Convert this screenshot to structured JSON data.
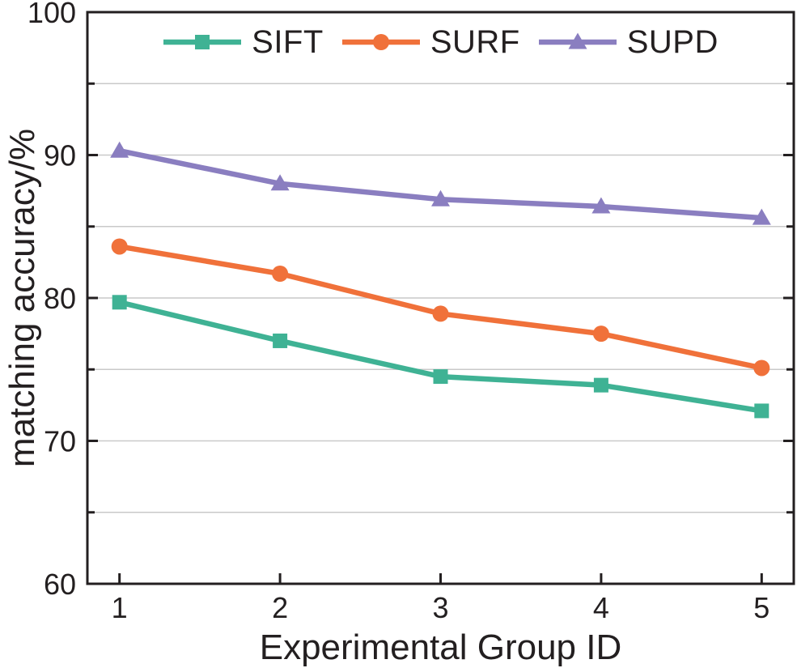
{
  "figure": {
    "background_color": "#ffffff",
    "axis_color": "#231f20",
    "grid_color": "#c9c9c9",
    "text_color": "#231f20"
  },
  "chart_data": {
    "type": "line",
    "title": "",
    "xlabel": "Experimental Group ID",
    "ylabel": "matching accuracy/%",
    "x": [
      1,
      2,
      3,
      4,
      5
    ],
    "x_tick_labels": [
      "1",
      "2",
      "3",
      "4",
      "5"
    ],
    "xlim": [
      0.8,
      5.2
    ],
    "ylim": [
      60,
      100
    ],
    "y_tick_labels": [
      "60",
      "70",
      "80",
      "90",
      "100"
    ],
    "y_major_ticks": [
      60,
      70,
      80,
      90,
      100
    ],
    "y_minor_ticks": [
      65,
      75,
      85,
      95
    ],
    "y_grid_ticks": [
      65,
      70,
      75,
      80,
      85,
      90,
      95
    ],
    "grid": "horizontal",
    "legend_position": "top-inside",
    "series": [
      {
        "name": "SIFT",
        "color": "#3fb294",
        "marker": "square",
        "values": [
          79.7,
          77.0,
          74.5,
          73.9,
          72.1
        ]
      },
      {
        "name": "SURF",
        "color": "#f0713a",
        "marker": "circle",
        "values": [
          83.6,
          81.7,
          78.9,
          77.5,
          75.1
        ]
      },
      {
        "name": "SUPD",
        "color": "#8a7ec0",
        "marker": "triangle",
        "values": [
          90.3,
          88.0,
          86.9,
          86.4,
          85.6
        ]
      }
    ]
  }
}
